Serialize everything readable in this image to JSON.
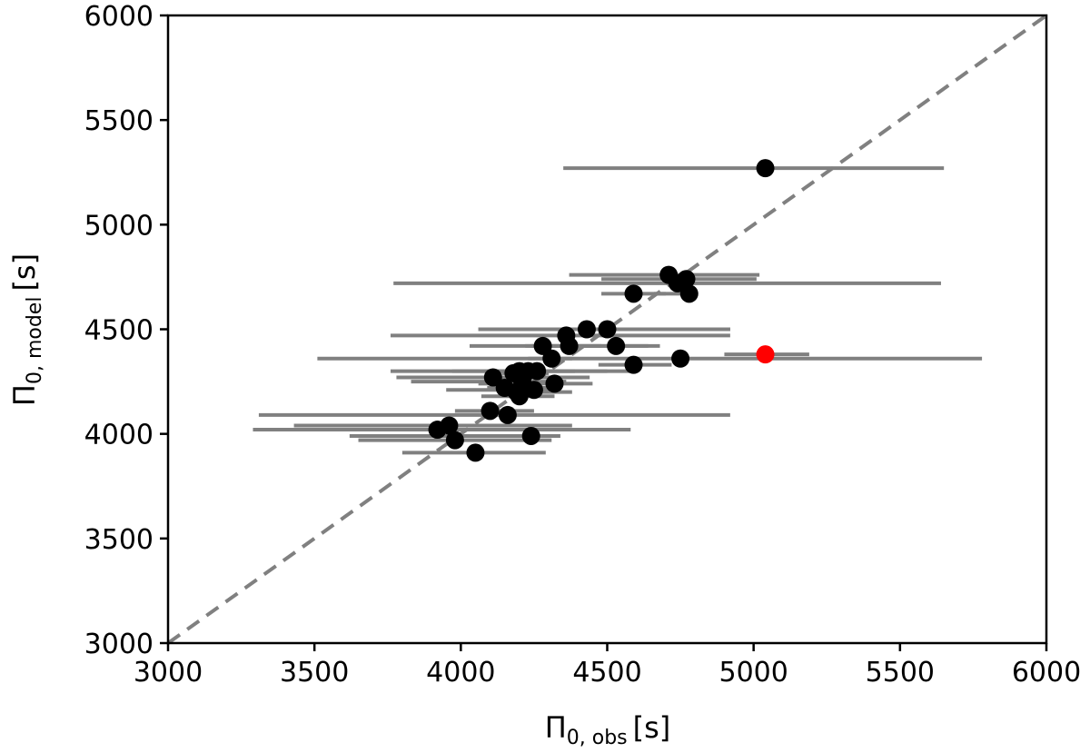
{
  "chart_data": {
    "type": "scatter",
    "title": "",
    "xlabel": {
      "symbol": "Π",
      "subscript": "0, obs",
      "unit": "[s]"
    },
    "ylabel": {
      "symbol": "Π",
      "subscript": "0, model",
      "unit": "[s]"
    },
    "xlim": [
      3000,
      6000
    ],
    "ylim": [
      3000,
      6000
    ],
    "xticks": [
      3000,
      3500,
      4000,
      4500,
      5000,
      5500,
      6000
    ],
    "yticks": [
      3000,
      3500,
      4000,
      4500,
      5000,
      5500,
      6000
    ],
    "grid": false,
    "legend": null,
    "reference_line": {
      "type": "y=x",
      "style": "dashed",
      "color": "#808080"
    },
    "colors": {
      "point": "#000000",
      "highlight": "#ff0000",
      "errorbar": "#808080"
    },
    "points": [
      {
        "x": 5040,
        "y": 5270,
        "xerr_low": 4350,
        "xerr_high": 5650
      },
      {
        "x": 4710,
        "y": 4760,
        "xerr_low": 4370,
        "xerr_high": 5020
      },
      {
        "x": 4740,
        "y": 4720,
        "xerr_low": 3770,
        "xerr_high": 5640
      },
      {
        "x": 4770,
        "y": 4740,
        "xerr_low": 4480,
        "xerr_high": 5010
      },
      {
        "x": 4780,
        "y": 4670,
        "xerr_low": 4660,
        "xerr_high": 4800
      },
      {
        "x": 4590,
        "y": 4670,
        "xerr_low": 4480,
        "xerr_high": 4700
      },
      {
        "x": 4430,
        "y": 4500,
        "xerr_low": 4060,
        "xerr_high": 4920
      },
      {
        "x": 4500,
        "y": 4500,
        "xerr_low": 4060,
        "xerr_high": 4920
      },
      {
        "x": 4360,
        "y": 4470,
        "xerr_low": 3760,
        "xerr_high": 4920
      },
      {
        "x": 4530,
        "y": 4420,
        "xerr_low": 4220,
        "xerr_high": 4680
      },
      {
        "x": 4370,
        "y": 4420,
        "xerr_low": 4030,
        "xerr_high": 4640
      },
      {
        "x": 4280,
        "y": 4420,
        "xerr_low": 4240,
        "xerr_high": 4480
      },
      {
        "x": 5040,
        "y": 4380,
        "xerr_low": 4900,
        "xerr_high": 5190,
        "highlight": true
      },
      {
        "x": 4750,
        "y": 4360,
        "xerr_low": 3510,
        "xerr_high": 5780
      },
      {
        "x": 4310,
        "y": 4360,
        "xerr_low": 4230,
        "xerr_high": 4380
      },
      {
        "x": 4590,
        "y": 4330,
        "xerr_low": 4470,
        "xerr_high": 4720
      },
      {
        "x": 4230,
        "y": 4300,
        "xerr_low": 3760,
        "xerr_high": 4580
      },
      {
        "x": 4200,
        "y": 4300,
        "xerr_low": 4130,
        "xerr_high": 4390
      },
      {
        "x": 4260,
        "y": 4300,
        "xerr_low": 3970,
        "xerr_high": 4500
      },
      {
        "x": 4180,
        "y": 4290,
        "xerr_low": 4140,
        "xerr_high": 4300
      },
      {
        "x": 4110,
        "y": 4270,
        "xerr_low": 3780,
        "xerr_high": 4440
      },
      {
        "x": 4210,
        "y": 4250,
        "xerr_low": 3830,
        "xerr_high": 4360
      },
      {
        "x": 4320,
        "y": 4240,
        "xerr_low": 4060,
        "xerr_high": 4450
      },
      {
        "x": 4150,
        "y": 4220,
        "xerr_low": 4090,
        "xerr_high": 4330
      },
      {
        "x": 4190,
        "y": 4200,
        "xerr_low": 4140,
        "xerr_high": 4380
      },
      {
        "x": 4250,
        "y": 4210,
        "xerr_low": 3950,
        "xerr_high": 4340
      },
      {
        "x": 4200,
        "y": 4180,
        "xerr_low": 4070,
        "xerr_high": 4320
      },
      {
        "x": 4100,
        "y": 4110,
        "xerr_low": 3980,
        "xerr_high": 4250
      },
      {
        "x": 4160,
        "y": 4090,
        "xerr_low": 3310,
        "xerr_high": 4920
      },
      {
        "x": 3920,
        "y": 4020,
        "xerr_low": 3290,
        "xerr_high": 4580
      },
      {
        "x": 3960,
        "y": 4040,
        "xerr_low": 3430,
        "xerr_high": 4380
      },
      {
        "x": 4240,
        "y": 3990,
        "xerr_low": 3620,
        "xerr_high": 4340
      },
      {
        "x": 3980,
        "y": 3970,
        "xerr_low": 3650,
        "xerr_high": 4310
      },
      {
        "x": 4050,
        "y": 3910,
        "xerr_low": 3800,
        "xerr_high": 4290
      }
    ]
  }
}
